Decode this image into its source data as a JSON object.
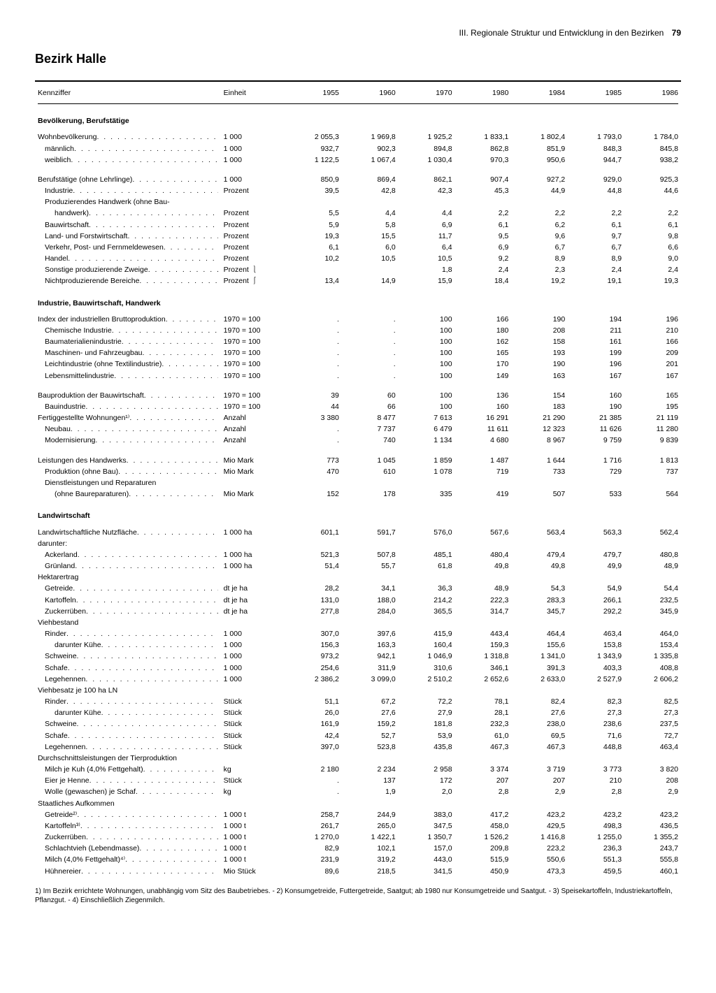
{
  "header": {
    "chapter": "III. Regionale Struktur und Entwicklung in den Bezirken",
    "page": "79"
  },
  "title": "Bezirk Halle",
  "columns": {
    "kennziffer": "Kennziffer",
    "einheit": "Einheit",
    "years": [
      "1955",
      "1960",
      "1970",
      "1980",
      "1984",
      "1985",
      "1986"
    ]
  },
  "sections": [
    {
      "title": "Bevölkerung, Berufstätige",
      "rows": [
        {
          "l": "Wohnbevölkerung",
          "u": "1 000",
          "v": [
            "2 055,3",
            "1 969,8",
            "1 925,2",
            "1 833,1",
            "1 802,4",
            "1 793,0",
            "1 784,0"
          ]
        },
        {
          "l": "männlich",
          "i": 1,
          "u": "1 000",
          "v": [
            "932,7",
            "902,3",
            "894,8",
            "862,8",
            "851,9",
            "848,3",
            "845,8"
          ]
        },
        {
          "l": "weiblich",
          "i": 1,
          "u": "1 000",
          "v": [
            "1 122,5",
            "1 067,4",
            "1 030,4",
            "970,3",
            "950,6",
            "944,7",
            "938,2"
          ]
        },
        {
          "spacer": true
        },
        {
          "l": "Berufstätige (ohne Lehrlinge)",
          "u": "1 000",
          "v": [
            "850,9",
            "869,4",
            "862,1",
            "907,4",
            "927,2",
            "929,0",
            "925,3"
          ]
        },
        {
          "l": "Industrie",
          "i": 1,
          "u": "Prozent",
          "v": [
            "39,5",
            "42,8",
            "42,3",
            "45,3",
            "44,9",
            "44,8",
            "44,6"
          ]
        },
        {
          "l": "Produzierendes Handwerk (ohne Bau-",
          "i": 1,
          "nodots": true,
          "u": "",
          "v": [
            "",
            "",
            "",
            "",
            "",
            "",
            ""
          ]
        },
        {
          "l": "handwerk)",
          "i": 2,
          "u": "Prozent",
          "v": [
            "5,5",
            "4,4",
            "4,4",
            "2,2",
            "2,2",
            "2,2",
            "2,2"
          ]
        },
        {
          "l": "Bauwirtschaft",
          "i": 1,
          "u": "Prozent",
          "v": [
            "5,9",
            "5,8",
            "6,9",
            "6,1",
            "6,2",
            "6,1",
            "6,1"
          ]
        },
        {
          "l": "Land- und Forstwirtschaft",
          "i": 1,
          "u": "Prozent",
          "v": [
            "19,3",
            "15,5",
            "11,7",
            "9,5",
            "9,6",
            "9,7",
            "9,8"
          ]
        },
        {
          "l": "Verkehr, Post- und Fernmeldewesen",
          "i": 1,
          "u": "Prozent",
          "v": [
            "6,1",
            "6,0",
            "6,4",
            "6,9",
            "6,7",
            "6,7",
            "6,6"
          ]
        },
        {
          "l": "Handel",
          "i": 1,
          "u": "Prozent",
          "v": [
            "10,2",
            "10,5",
            "10,5",
            "9,2",
            "8,9",
            "8,9",
            "9,0"
          ]
        },
        {
          "l": "Sonstige produzierende Zweige",
          "i": 1,
          "u": "Prozent  ⎱",
          "v": [
            "",
            "",
            "1,8",
            "2,4",
            "2,3",
            "2,4",
            "2,4"
          ]
        },
        {
          "l": "Nichtproduzierende Bereiche",
          "i": 1,
          "u": "Prozent  ⎰",
          "v": [
            "13,4",
            "14,9",
            "15,9",
            "18,4",
            "19,2",
            "19,1",
            "19,3"
          ]
        }
      ]
    },
    {
      "title": "Industrie, Bauwirtschaft, Handwerk",
      "rows": [
        {
          "l": "Index der industriellen Bruttoproduktion",
          "u": "1970 = 100",
          "v": [
            ".",
            ".",
            "100",
            "166",
            "190",
            "194",
            "196"
          ]
        },
        {
          "l": "Chemische Industrie",
          "i": 1,
          "u": "1970 = 100",
          "v": [
            ".",
            ".",
            "100",
            "180",
            "208",
            "211",
            "210"
          ]
        },
        {
          "l": "Baumaterialienindustrie",
          "i": 1,
          "u": "1970 = 100",
          "v": [
            ".",
            ".",
            "100",
            "162",
            "158",
            "161",
            "166"
          ]
        },
        {
          "l": "Maschinen- und Fahrzeugbau",
          "i": 1,
          "u": "1970 = 100",
          "v": [
            ".",
            ".",
            "100",
            "165",
            "193",
            "199",
            "209"
          ]
        },
        {
          "l": "Leichtindustrie (ohne Textilindustrie)",
          "i": 1,
          "u": "1970 = 100",
          "v": [
            ".",
            ".",
            "100",
            "170",
            "190",
            "196",
            "201"
          ]
        },
        {
          "l": "Lebensmittelindustrie",
          "i": 1,
          "u": "1970 = 100",
          "v": [
            ".",
            ".",
            "100",
            "149",
            "163",
            "167",
            "167"
          ]
        },
        {
          "spacer": true
        },
        {
          "l": "Bauproduktion der Bauwirtschaft",
          "u": "1970 = 100",
          "v": [
            "39",
            "60",
            "100",
            "136",
            "154",
            "160",
            "165"
          ]
        },
        {
          "l": "Bauindustrie",
          "i": 1,
          "u": "1970 = 100",
          "v": [
            "44",
            "66",
            "100",
            "160",
            "183",
            "190",
            "195"
          ]
        },
        {
          "l": "Fertiggestellte Wohnungen¹⁾",
          "u": "Anzahl",
          "v": [
            "3 380",
            "8 477",
            "7 613",
            "16 291",
            "21 290",
            "21 385",
            "21 119"
          ]
        },
        {
          "l": "Neubau",
          "i": 1,
          "u": "Anzahl",
          "v": [
            ".",
            "7 737",
            "6 479",
            "11 611",
            "12 323",
            "11 626",
            "11 280"
          ]
        },
        {
          "l": "Modernisierung",
          "i": 1,
          "u": "Anzahl",
          "v": [
            ".",
            "740",
            "1 134",
            "4 680",
            "8 967",
            "9 759",
            "9 839"
          ]
        },
        {
          "spacer": true
        },
        {
          "l": "Leistungen des Handwerks",
          "u": "Mio Mark",
          "v": [
            "773",
            "1 045",
            "1 859",
            "1 487",
            "1 644",
            "1 716",
            "1 813"
          ]
        },
        {
          "l": "Produktion (ohne Bau)",
          "i": 1,
          "u": "Mio Mark",
          "v": [
            "470",
            "610",
            "1 078",
            "719",
            "733",
            "729",
            "737"
          ]
        },
        {
          "l": "Dienstleistungen und Reparaturen",
          "i": 1,
          "nodots": true,
          "u": "",
          "v": [
            "",
            "",
            "",
            "",
            "",
            "",
            ""
          ]
        },
        {
          "l": "(ohne Baureparaturen)",
          "i": 2,
          "u": "Mio Mark",
          "v": [
            "152",
            "178",
            "335",
            "419",
            "507",
            "533",
            "564"
          ]
        }
      ]
    },
    {
      "title": "Landwirtschaft",
      "rows": [
        {
          "l": "Landwirtschaftliche Nutzfläche",
          "u": "1 000 ha",
          "v": [
            "601,1",
            "591,7",
            "576,0",
            "567,6",
            "563,4",
            "563,3",
            "562,4"
          ]
        },
        {
          "l": "darunter:",
          "nodots": true,
          "u": "",
          "v": [
            "",
            "",
            "",
            "",
            "",
            "",
            ""
          ]
        },
        {
          "l": "Ackerland",
          "i": 1,
          "u": "1 000 ha",
          "v": [
            "521,3",
            "507,8",
            "485,1",
            "480,4",
            "479,4",
            "479,7",
            "480,8"
          ]
        },
        {
          "l": "Grünland",
          "i": 1,
          "u": "1 000 ha",
          "v": [
            "51,4",
            "55,7",
            "61,8",
            "49,8",
            "49,8",
            "49,9",
            "48,9"
          ]
        },
        {
          "l": "Hektarertrag",
          "nodots": true,
          "u": "",
          "v": [
            "",
            "",
            "",
            "",
            "",
            "",
            ""
          ]
        },
        {
          "l": "Getreide",
          "i": 1,
          "u": "dt je ha",
          "v": [
            "28,2",
            "34,1",
            "36,3",
            "48,9",
            "54,3",
            "54,9",
            "54,4"
          ]
        },
        {
          "l": "Kartoffeln",
          "i": 1,
          "u": "dt je ha",
          "v": [
            "131,0",
            "188,0",
            "214,2",
            "222,3",
            "283,3",
            "266,1",
            "232,5"
          ]
        },
        {
          "l": "Zuckerrüben",
          "i": 1,
          "u": "dt je ha",
          "v": [
            "277,8",
            "284,0",
            "365,5",
            "314,7",
            "345,7",
            "292,2",
            "345,9"
          ]
        },
        {
          "l": "Viehbestand",
          "nodots": true,
          "u": "",
          "v": [
            "",
            "",
            "",
            "",
            "",
            "",
            ""
          ]
        },
        {
          "l": "Rinder",
          "i": 1,
          "u": "1 000",
          "v": [
            "307,0",
            "397,6",
            "415,9",
            "443,4",
            "464,4",
            "463,4",
            "464,0"
          ]
        },
        {
          "l": "darunter Kühe",
          "i": 2,
          "u": "1 000",
          "v": [
            "156,3",
            "163,3",
            "160,4",
            "159,3",
            "155,6",
            "153,8",
            "153,4"
          ]
        },
        {
          "l": "Schweine",
          "i": 1,
          "u": "1 000",
          "v": [
            "973,2",
            "942,1",
            "1 046,9",
            "1 318,8",
            "1 341,0",
            "1 343,9",
            "1 335,8"
          ]
        },
        {
          "l": "Schafe",
          "i": 1,
          "u": "1 000",
          "v": [
            "254,6",
            "311,9",
            "310,6",
            "346,1",
            "391,3",
            "403,3",
            "408,8"
          ]
        },
        {
          "l": "Legehennen",
          "i": 1,
          "u": "1 000",
          "v": [
            "2 386,2",
            "3 099,0",
            "2 510,2",
            "2 652,6",
            "2 633,0",
            "2 527,9",
            "2 606,2"
          ]
        },
        {
          "l": "Viehbesatz je 100 ha LN",
          "nodots": true,
          "u": "",
          "v": [
            "",
            "",
            "",
            "",
            "",
            "",
            ""
          ]
        },
        {
          "l": "Rinder",
          "i": 1,
          "u": "Stück",
          "v": [
            "51,1",
            "67,2",
            "72,2",
            "78,1",
            "82,4",
            "82,3",
            "82,5"
          ]
        },
        {
          "l": "darunter Kühe",
          "i": 2,
          "u": "Stück",
          "v": [
            "26,0",
            "27,6",
            "27,9",
            "28,1",
            "27,6",
            "27,3",
            "27,3"
          ]
        },
        {
          "l": "Schweine",
          "i": 1,
          "u": "Stück",
          "v": [
            "161,9",
            "159,2",
            "181,8",
            "232,3",
            "238,0",
            "238,6",
            "237,5"
          ]
        },
        {
          "l": "Schafe",
          "i": 1,
          "u": "Stück",
          "v": [
            "42,4",
            "52,7",
            "53,9",
            "61,0",
            "69,5",
            "71,6",
            "72,7"
          ]
        },
        {
          "l": "Legehennen",
          "i": 1,
          "u": "Stück",
          "v": [
            "397,0",
            "523,8",
            "435,8",
            "467,3",
            "467,3",
            "448,8",
            "463,4"
          ]
        },
        {
          "l": "Durchschnittsleistungen der Tierproduktion",
          "nodots": true,
          "u": "",
          "v": [
            "",
            "",
            "",
            "",
            "",
            "",
            ""
          ]
        },
        {
          "l": "Milch je Kuh (4,0% Fettgehalt)",
          "i": 1,
          "u": "kg",
          "v": [
            "2 180",
            "2 234",
            "2 958",
            "3 374",
            "3 719",
            "3 773",
            "3 820"
          ]
        },
        {
          "l": "Eier je Henne",
          "i": 1,
          "u": "Stück",
          "v": [
            ".",
            "137",
            "172",
            "207",
            "207",
            "210",
            "208"
          ]
        },
        {
          "l": "Wolle (gewaschen) je Schaf",
          "i": 1,
          "u": "kg",
          "v": [
            ".",
            "1,9",
            "2,0",
            "2,8",
            "2,9",
            "2,8",
            "2,9"
          ]
        },
        {
          "l": "Staatliches Aufkommen",
          "nodots": true,
          "u": "",
          "v": [
            "",
            "",
            "",
            "",
            "",
            "",
            ""
          ]
        },
        {
          "l": "Getreide²⁾",
          "i": 1,
          "u": "1 000 t",
          "v": [
            "258,7",
            "244,9",
            "383,0",
            "417,2",
            "423,2",
            "423,2",
            "423,2"
          ]
        },
        {
          "l": "Kartoffeln³⁾",
          "i": 1,
          "u": "1 000 t",
          "v": [
            "261,7",
            "265,0",
            "347,5",
            "458,0",
            "429,5",
            "498,3",
            "436,5"
          ]
        },
        {
          "l": "Zuckerrüben",
          "i": 1,
          "u": "1 000 t",
          "v": [
            "1 270,0",
            "1 422,1",
            "1 350,7",
            "1 526,2",
            "1 416,8",
            "1 255,0",
            "1 355,2"
          ]
        },
        {
          "l": "Schlachtvieh (Lebendmasse)",
          "i": 1,
          "u": "1 000 t",
          "v": [
            "82,9",
            "102,1",
            "157,0",
            "209,8",
            "223,2",
            "236,3",
            "243,7"
          ]
        },
        {
          "l": "Milch (4,0% Fettgehalt)⁴⁾",
          "i": 1,
          "u": "1 000 t",
          "v": [
            "231,9",
            "319,2",
            "443,0",
            "515,9",
            "550,6",
            "551,3",
            "555,8"
          ]
        },
        {
          "l": "Hühnereier",
          "i": 1,
          "u": "Mio Stück",
          "v": [
            "89,6",
            "218,5",
            "341,5",
            "450,9",
            "473,3",
            "459,5",
            "460,1"
          ]
        }
      ]
    }
  ],
  "footnotes": "1) Im Bezirk errichtete Wohnungen, unabhängig vom Sitz des Baubetriebes. - 2) Konsumgetreide, Futtergetreide, Saatgut; ab 1980 nur Konsumgetreide und Saatgut. - 3) Speisekartoffeln, Industriekartoffeln, Pflanzgut. - 4) Einschließlich Ziegenmilch."
}
